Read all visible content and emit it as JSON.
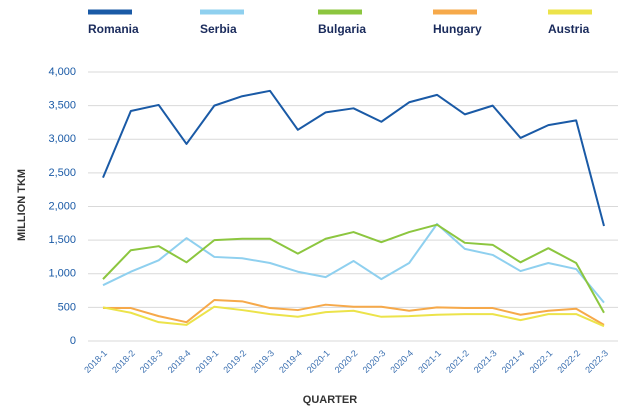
{
  "chart_data": {
    "type": "line",
    "categories": [
      "2018-1",
      "2018-2",
      "2018-3",
      "2018-4",
      "2019-1",
      "2019-2",
      "2019-3",
      "2019-4",
      "2020-1",
      "2020-2",
      "2020-3",
      "2020-4",
      "2021-1",
      "2021-2",
      "2021-3",
      "2021-4",
      "2022-1",
      "2022-2",
      "2022-3"
    ],
    "series": [
      {
        "name": "Romania",
        "color": "#1a5aa6",
        "values": [
          2430,
          3420,
          3510,
          2930,
          3500,
          3640,
          3720,
          3140,
          3400,
          3460,
          3260,
          3550,
          3660,
          3370,
          3500,
          3020,
          3210,
          3280,
          1710
        ]
      },
      {
        "name": "Serbia",
        "color": "#8fd0ef",
        "values": [
          830,
          1030,
          1200,
          1530,
          1250,
          1230,
          1160,
          1030,
          950,
          1190,
          920,
          1160,
          1740,
          1370,
          1280,
          1040,
          1160,
          1070,
          570
        ]
      },
      {
        "name": "Bulgaria",
        "color": "#8cc63f",
        "values": [
          920,
          1350,
          1410,
          1170,
          1500,
          1520,
          1520,
          1300,
          1520,
          1620,
          1470,
          1620,
          1730,
          1460,
          1430,
          1170,
          1380,
          1160,
          420
        ]
      },
      {
        "name": "Hungary",
        "color": "#f6a94a",
        "values": [
          490,
          490,
          370,
          280,
          610,
          590,
          490,
          460,
          540,
          510,
          510,
          450,
          500,
          490,
          490,
          390,
          450,
          480,
          240
        ]
      },
      {
        "name": "Austria",
        "color": "#ece34a",
        "values": [
          500,
          420,
          280,
          240,
          510,
          460,
          400,
          360,
          430,
          450,
          360,
          370,
          390,
          400,
          400,
          310,
          400,
          400,
          220
        ]
      }
    ],
    "ylim": [
      0,
      4000
    ],
    "yticks": [
      0,
      {
        "value": 500,
        "label": "500"
      },
      {
        "value": 1000,
        "label": "1,000"
      },
      {
        "value": 1500,
        "label": "1,500"
      },
      {
        "value": 2000,
        "label": "2,000"
      },
      {
        "value": 2500,
        "label": "2,500"
      },
      {
        "value": 3000,
        "label": "3,000"
      },
      {
        "value": 3500,
        "label": "3,500"
      },
      {
        "value": 4000,
        "label": "4,000"
      }
    ],
    "ylabel": "MILLION TKM",
    "xlabel": "QUARTER",
    "grid": true
  }
}
